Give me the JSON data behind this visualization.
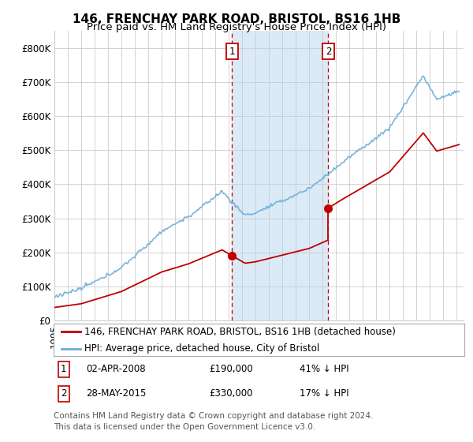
{
  "title": "146, FRENCHAY PARK ROAD, BRISTOL, BS16 1HB",
  "subtitle": "Price paid vs. HM Land Registry's House Price Index (HPI)",
  "ylim": [
    0,
    850000
  ],
  "yticks": [
    0,
    100000,
    200000,
    300000,
    400000,
    500000,
    600000,
    700000,
    800000
  ],
  "ytick_labels": [
    "£0",
    "£100K",
    "£200K",
    "£300K",
    "£400K",
    "£500K",
    "£600K",
    "£700K",
    "£800K"
  ],
  "xlim_start": 1995.0,
  "xlim_end": 2025.5,
  "hpi_color": "#6aaed6",
  "price_color": "#c00000",
  "sale1_date": 2008.25,
  "sale1_price": 190000,
  "sale2_date": 2015.42,
  "sale2_price": 330000,
  "highlight_color": "#daeaf7",
  "vline_color": "#c00000",
  "grid_color": "#cccccc",
  "background_color": "#ffffff",
  "legend_line1": "146, FRENCHAY PARK ROAD, BRISTOL, BS16 1HB (detached house)",
  "legend_line2": "HPI: Average price, detached house, City of Bristol",
  "footnote": "Contains HM Land Registry data © Crown copyright and database right 2024.\nThis data is licensed under the Open Government Licence v3.0.",
  "title_fontsize": 11,
  "subtitle_fontsize": 9.5,
  "tick_fontsize": 8.5,
  "legend_fontsize": 8.5,
  "annotation_fontsize": 8.5,
  "footnote_fontsize": 7.5
}
